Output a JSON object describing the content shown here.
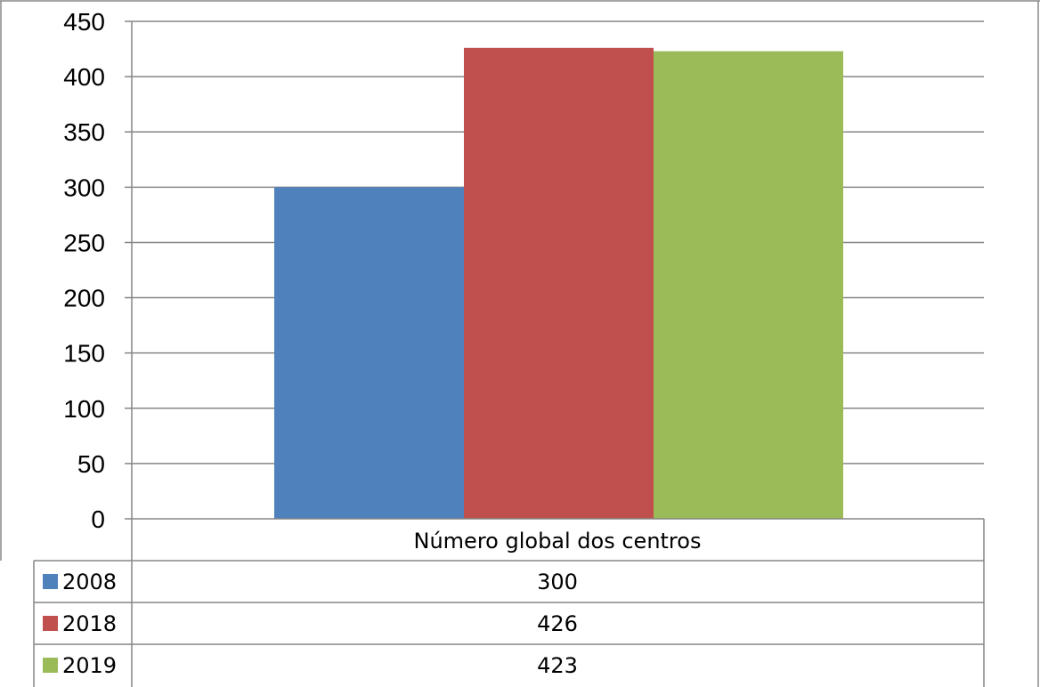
{
  "chart_data": {
    "type": "bar",
    "categories": [
      "Número global dos centros"
    ],
    "series": [
      {
        "name": "2008",
        "values": [
          300
        ],
        "color": "#4F81BD"
      },
      {
        "name": "2018",
        "values": [
          426
        ],
        "color": "#C0504D"
      },
      {
        "name": "2019",
        "values": [
          423
        ],
        "color": "#9BBB59"
      }
    ],
    "ylim": [
      0,
      450
    ],
    "yticks": [
      "0",
      "50",
      "100",
      "150",
      "200",
      "250",
      "300",
      "350",
      "400",
      "450"
    ],
    "grid": true,
    "legend": "data-table",
    "table": {
      "header": "Número global dos centros",
      "rows": [
        {
          "label": "2008",
          "value": "300"
        },
        {
          "label": "2018",
          "value": "426"
        },
        {
          "label": "2019",
          "value": "423"
        }
      ]
    }
  }
}
